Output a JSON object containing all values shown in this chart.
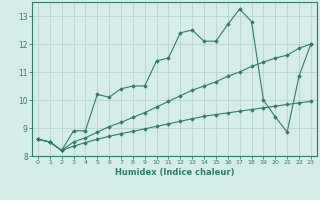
{
  "xlabel": "Humidex (Indice chaleur)",
  "background_color": "#d4ede8",
  "grid_color": "#b8d4cc",
  "line_color": "#2e7d6e",
  "x_values": [
    0,
    1,
    2,
    3,
    4,
    5,
    6,
    7,
    8,
    9,
    10,
    11,
    12,
    13,
    14,
    15,
    16,
    17,
    18,
    19,
    20,
    21,
    22,
    23
  ],
  "line1": [
    8.6,
    8.5,
    8.2,
    8.9,
    8.9,
    10.2,
    10.1,
    10.4,
    10.5,
    10.5,
    11.4,
    11.5,
    12.4,
    12.5,
    12.1,
    12.1,
    12.7,
    13.25,
    12.8,
    10.0,
    9.4,
    8.85,
    10.85,
    12.0
  ],
  "line2": [
    8.6,
    8.5,
    8.2,
    8.5,
    8.65,
    8.85,
    9.05,
    9.2,
    9.38,
    9.55,
    9.75,
    9.95,
    10.15,
    10.35,
    10.5,
    10.65,
    10.85,
    11.0,
    11.2,
    11.35,
    11.5,
    11.6,
    11.85,
    12.0
  ],
  "line3": [
    8.6,
    8.5,
    8.2,
    8.35,
    8.48,
    8.6,
    8.7,
    8.8,
    8.88,
    8.97,
    9.06,
    9.15,
    9.24,
    9.33,
    9.42,
    9.48,
    9.54,
    9.6,
    9.66,
    9.72,
    9.78,
    9.84,
    9.9,
    9.95
  ],
  "ylim": [
    8,
    13.5
  ],
  "xlim": [
    -0.5,
    23.5
  ],
  "yticks": [
    8,
    9,
    10,
    11,
    12,
    13
  ],
  "xticks": [
    0,
    1,
    2,
    3,
    4,
    5,
    6,
    7,
    8,
    9,
    10,
    11,
    12,
    13,
    14,
    15,
    16,
    17,
    18,
    19,
    20,
    21,
    22,
    23
  ]
}
